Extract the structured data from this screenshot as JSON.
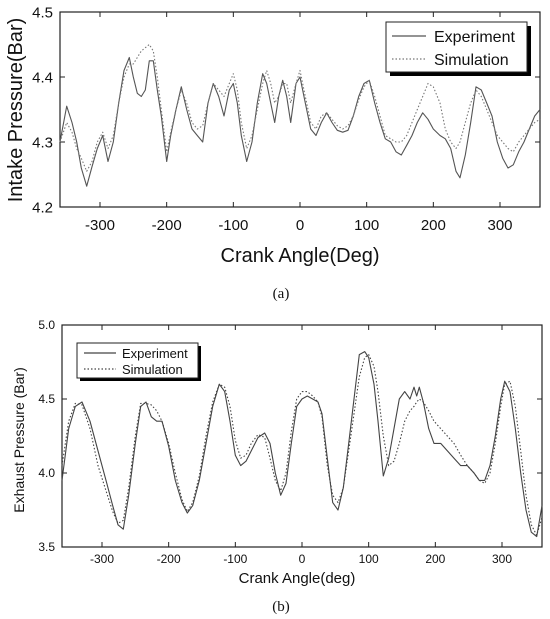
{
  "chart_data": [
    {
      "type": "line",
      "caption": "(a)",
      "xlabel": "Crank Angle(Deg)",
      "ylabel": "Intake Pressure(Bar)",
      "xlim": [
        -360,
        360
      ],
      "ylim": [
        4.2,
        4.5
      ],
      "xticks": [
        -300,
        -200,
        -100,
        0,
        100,
        200,
        300
      ],
      "yticks": [
        4.2,
        4.3,
        4.4,
        4.5
      ],
      "grid": false,
      "legend_position": "top-right",
      "series": [
        {
          "name": "Experiment",
          "style": "solid",
          "color": "#555555",
          "x": [
            -360,
            -350,
            -342,
            -335,
            -328,
            -320,
            -312,
            -304,
            -296,
            -288,
            -280,
            -272,
            -264,
            -256,
            -250,
            -244,
            -238,
            -232,
            -226,
            -220,
            -214,
            -208,
            -200,
            -194,
            -186,
            -178,
            -170,
            -162,
            -154,
            -146,
            -138,
            -130,
            -122,
            -114,
            -106,
            -100,
            -94,
            -88,
            -80,
            -72,
            -64,
            -56,
            -50,
            -44,
            -38,
            -32,
            -26,
            -20,
            -14,
            -6,
            0,
            8,
            16,
            24,
            32,
            40,
            48,
            56,
            64,
            72,
            80,
            88,
            96,
            104,
            112,
            120,
            128,
            136,
            144,
            152,
            160,
            168,
            176,
            184,
            192,
            200,
            210,
            218,
            226,
            234,
            240,
            248,
            256,
            264,
            272,
            280,
            288,
            296,
            304,
            312,
            320,
            328,
            336,
            344,
            352,
            360
          ],
          "y": [
            4.3,
            4.355,
            4.33,
            4.3,
            4.26,
            4.232,
            4.262,
            4.29,
            4.31,
            4.27,
            4.3,
            4.36,
            4.41,
            4.43,
            4.4,
            4.375,
            4.37,
            4.38,
            4.425,
            4.425,
            4.38,
            4.34,
            4.27,
            4.31,
            4.35,
            4.385,
            4.35,
            4.32,
            4.31,
            4.3,
            4.36,
            4.39,
            4.37,
            4.34,
            4.38,
            4.39,
            4.36,
            4.31,
            4.27,
            4.3,
            4.36,
            4.405,
            4.39,
            4.36,
            4.33,
            4.37,
            4.395,
            4.37,
            4.33,
            4.39,
            4.4,
            4.36,
            4.32,
            4.31,
            4.33,
            4.345,
            4.33,
            4.318,
            4.315,
            4.318,
            4.34,
            4.37,
            4.39,
            4.395,
            4.36,
            4.33,
            4.305,
            4.3,
            4.285,
            4.28,
            4.295,
            4.31,
            4.33,
            4.345,
            4.335,
            4.32,
            4.31,
            4.305,
            4.29,
            4.255,
            4.245,
            4.28,
            4.33,
            4.385,
            4.38,
            4.36,
            4.34,
            4.3,
            4.275,
            4.26,
            4.265,
            4.285,
            4.3,
            4.32,
            4.34,
            4.35
          ]
        },
        {
          "name": "Simulation",
          "style": "dotted",
          "color": "#777777",
          "x": [
            -360,
            -350,
            -342,
            -335,
            -328,
            -320,
            -312,
            -304,
            -296,
            -288,
            -280,
            -272,
            -264,
            -256,
            -250,
            -244,
            -238,
            -232,
            -226,
            -220,
            -214,
            -208,
            -200,
            -194,
            -186,
            -178,
            -170,
            -162,
            -154,
            -146,
            -138,
            -130,
            -122,
            -114,
            -106,
            -100,
            -94,
            -88,
            -80,
            -72,
            -64,
            -56,
            -50,
            -44,
            -38,
            -32,
            -26,
            -20,
            -14,
            -6,
            0,
            8,
            16,
            24,
            32,
            40,
            48,
            56,
            64,
            72,
            80,
            88,
            96,
            104,
            112,
            120,
            128,
            136,
            144,
            152,
            160,
            168,
            176,
            184,
            192,
            200,
            210,
            218,
            226,
            234,
            240,
            248,
            256,
            264,
            272,
            280,
            288,
            296,
            304,
            312,
            320,
            328,
            336,
            344,
            352,
            360
          ],
          "y": [
            4.3,
            4.33,
            4.315,
            4.29,
            4.275,
            4.255,
            4.27,
            4.3,
            4.315,
            4.29,
            4.31,
            4.36,
            4.4,
            4.42,
            4.42,
            4.43,
            4.44,
            4.445,
            4.45,
            4.44,
            4.4,
            4.35,
            4.285,
            4.315,
            4.35,
            4.38,
            4.36,
            4.33,
            4.32,
            4.325,
            4.36,
            4.39,
            4.38,
            4.37,
            4.39,
            4.405,
            4.38,
            4.33,
            4.29,
            4.31,
            4.35,
            4.39,
            4.41,
            4.39,
            4.36,
            4.37,
            4.39,
            4.39,
            4.36,
            4.39,
            4.41,
            4.37,
            4.33,
            4.32,
            4.34,
            4.345,
            4.335,
            4.325,
            4.32,
            4.325,
            4.34,
            4.365,
            4.385,
            4.395,
            4.37,
            4.34,
            4.31,
            4.305,
            4.3,
            4.3,
            4.31,
            4.33,
            4.35,
            4.37,
            4.39,
            4.385,
            4.36,
            4.32,
            4.3,
            4.29,
            4.3,
            4.33,
            4.36,
            4.38,
            4.37,
            4.35,
            4.33,
            4.31,
            4.3,
            4.29,
            4.285,
            4.3,
            4.31,
            4.32,
            4.33,
            4.335
          ]
        }
      ]
    },
    {
      "type": "line",
      "caption": "(b)",
      "xlabel": "Crank Angle(deg)",
      "ylabel": "Exhaust Pressure (Bar)",
      "xlim": [
        -360,
        360
      ],
      "ylim": [
        3.5,
        5.0
      ],
      "xticks": [
        -300,
        -200,
        -100,
        0,
        100,
        200,
        300
      ],
      "yticks": [
        3.5,
        4.0,
        4.5,
        5.0
      ],
      "grid": false,
      "legend_position": "top-left",
      "series": [
        {
          "name": "Experiment",
          "style": "solid",
          "color": "#444444",
          "x": [
            -360,
            -350,
            -340,
            -330,
            -318,
            -306,
            -294,
            -284,
            -276,
            -268,
            -260,
            -250,
            -242,
            -234,
            -226,
            -218,
            -210,
            -200,
            -190,
            -180,
            -172,
            -164,
            -154,
            -144,
            -134,
            -124,
            -116,
            -108,
            -100,
            -92,
            -84,
            -76,
            -66,
            -56,
            -48,
            -40,
            -32,
            -24,
            -16,
            -8,
            0,
            8,
            16,
            24,
            30,
            38,
            46,
            54,
            62,
            70,
            78,
            86,
            94,
            100,
            108,
            114,
            122,
            130,
            138,
            146,
            154,
            162,
            168,
            172,
            176,
            182,
            190,
            198,
            208,
            218,
            228,
            238,
            248,
            258,
            266,
            274,
            282,
            290,
            298,
            304,
            312,
            320,
            328,
            336,
            344,
            352,
            360
          ],
          "y": [
            3.95,
            4.3,
            4.45,
            4.48,
            4.35,
            4.15,
            3.95,
            3.78,
            3.65,
            3.62,
            3.85,
            4.2,
            4.45,
            4.48,
            4.38,
            4.35,
            4.35,
            4.18,
            3.95,
            3.8,
            3.73,
            3.78,
            3.95,
            4.2,
            4.45,
            4.6,
            4.55,
            4.35,
            4.12,
            4.05,
            4.08,
            4.15,
            4.24,
            4.27,
            4.2,
            4.0,
            3.85,
            3.93,
            4.2,
            4.45,
            4.5,
            4.52,
            4.5,
            4.48,
            4.4,
            4.1,
            3.8,
            3.75,
            3.9,
            4.2,
            4.5,
            4.8,
            4.82,
            4.78,
            4.6,
            4.35,
            3.98,
            4.1,
            4.3,
            4.5,
            4.55,
            4.5,
            4.58,
            4.52,
            4.58,
            4.48,
            4.3,
            4.2,
            4.2,
            4.15,
            4.1,
            4.05,
            4.05,
            4.0,
            3.95,
            3.95,
            4.05,
            4.25,
            4.5,
            4.62,
            4.55,
            4.3,
            4.0,
            3.75,
            3.6,
            3.57,
            3.78
          ]
        },
        {
          "name": "Simulation",
          "style": "dotted",
          "color": "#444444",
          "x": [
            -360,
            -350,
            -340,
            -330,
            -318,
            -306,
            -294,
            -284,
            -276,
            -268,
            -260,
            -250,
            -242,
            -234,
            -226,
            -218,
            -210,
            -200,
            -190,
            -180,
            -172,
            -164,
            -154,
            -144,
            -134,
            -124,
            -116,
            -108,
            -100,
            -92,
            -84,
            -76,
            -66,
            -56,
            -48,
            -40,
            -32,
            -24,
            -16,
            -8,
            0,
            8,
            16,
            24,
            30,
            38,
            46,
            54,
            62,
            70,
            78,
            86,
            94,
            100,
            108,
            114,
            122,
            130,
            138,
            146,
            154,
            162,
            168,
            172,
            176,
            182,
            190,
            198,
            208,
            218,
            228,
            238,
            248,
            258,
            266,
            274,
            282,
            290,
            298,
            304,
            312,
            320,
            328,
            336,
            344,
            352,
            360
          ],
          "y": [
            4.05,
            4.35,
            4.47,
            4.46,
            4.3,
            4.05,
            3.88,
            3.74,
            3.66,
            3.68,
            3.9,
            4.25,
            4.47,
            4.47,
            4.46,
            4.42,
            4.35,
            4.2,
            4.0,
            3.82,
            3.74,
            3.8,
            3.98,
            4.25,
            4.48,
            4.6,
            4.58,
            4.45,
            4.22,
            4.1,
            4.12,
            4.2,
            4.26,
            4.24,
            4.1,
            3.95,
            3.88,
            4.0,
            4.28,
            4.5,
            4.55,
            4.55,
            4.52,
            4.48,
            4.38,
            4.05,
            3.85,
            3.8,
            3.9,
            4.15,
            4.4,
            4.65,
            4.78,
            4.8,
            4.72,
            4.55,
            4.25,
            4.05,
            4.08,
            4.2,
            4.35,
            4.42,
            4.45,
            4.48,
            4.5,
            4.48,
            4.42,
            4.35,
            4.3,
            4.25,
            4.2,
            4.12,
            4.05,
            4.0,
            3.95,
            3.93,
            4.0,
            4.2,
            4.45,
            4.6,
            4.62,
            4.45,
            4.15,
            3.85,
            3.65,
            3.58,
            3.7
          ]
        }
      ]
    }
  ]
}
